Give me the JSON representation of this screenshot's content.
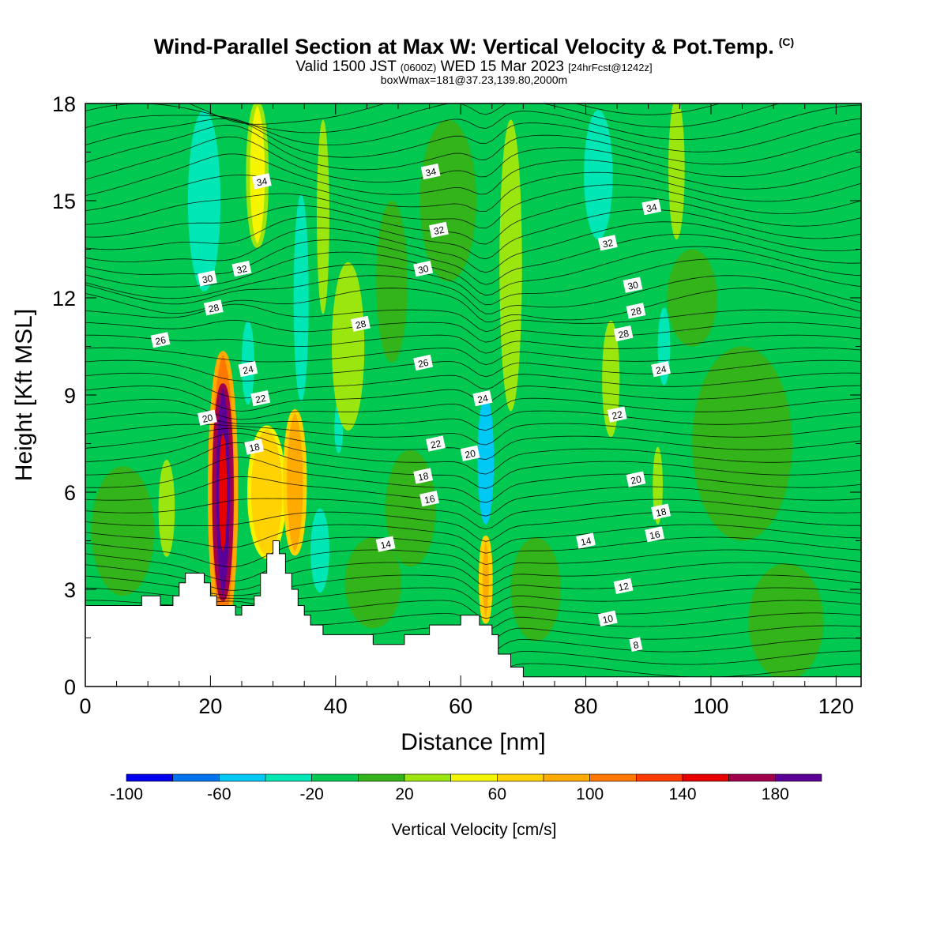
{
  "header": {
    "title": "Wind-Parallel Section at Max W: Vertical Velocity & Pot.Temp.",
    "copyright": "(C)",
    "valid_prefix": "Valid 1500 JST",
    "valid_utc": "(0600Z)",
    "valid_date": "WED 15 Mar 2023",
    "forecast": "[24hrFcst@1242z]",
    "box_info": "boxWmax=181@37.23,139.80,2000m"
  },
  "colorbar": {
    "label": "Vertical Velocity [cm/s]",
    "tick_labels": [
      "-100",
      "-60",
      "-20",
      "20",
      "60",
      "100",
      "140",
      "180"
    ],
    "levels": [
      -100,
      -80,
      -60,
      -40,
      -20,
      0,
      20,
      40,
      60,
      80,
      100,
      120,
      140,
      160,
      180,
      200
    ],
    "colors": [
      "#0000ee",
      "#0073ee",
      "#00c8f5",
      "#00e6b4",
      "#00c850",
      "#33b41a",
      "#9be60f",
      "#f5f500",
      "#ffd200",
      "#ffaa00",
      "#ff7800",
      "#ff3c00",
      "#e60000",
      "#a0004b",
      "#5a0096"
    ]
  },
  "chart_data": {
    "type": "heatmap",
    "xlabel": "Distance [nm]",
    "ylabel": "Height [Kft MSL]",
    "xlim": [
      0,
      124
    ],
    "ylim": [
      0,
      18
    ],
    "x_ticks": [
      0,
      20,
      40,
      60,
      80,
      100,
      120
    ],
    "x_tick_labels": [
      "0",
      "20",
      "40",
      "60",
      "80",
      "100",
      "120"
    ],
    "y_ticks": [
      0,
      3,
      6,
      9,
      12,
      15,
      18
    ],
    "y_tick_labels": [
      "0",
      "3",
      "6",
      "9",
      "12",
      "15",
      "18"
    ],
    "terrain": [
      [
        0,
        2.5
      ],
      [
        9,
        2.5
      ],
      [
        9,
        2.8
      ],
      [
        12,
        2.8
      ],
      [
        12,
        2.5
      ],
      [
        14,
        2.5
      ],
      [
        14,
        2.8
      ],
      [
        15,
        2.8
      ],
      [
        15,
        3.2
      ],
      [
        16,
        3.2
      ],
      [
        16,
        3.5
      ],
      [
        19,
        3.5
      ],
      [
        19,
        3.2
      ],
      [
        20,
        3.2
      ],
      [
        20,
        2.8
      ],
      [
        21,
        2.8
      ],
      [
        21,
        2.5
      ],
      [
        24,
        2.5
      ],
      [
        24,
        2.2
      ],
      [
        25,
        2.2
      ],
      [
        25,
        2.5
      ],
      [
        27,
        2.5
      ],
      [
        27,
        2.8
      ],
      [
        28,
        2.8
      ],
      [
        28,
        3.5
      ],
      [
        29,
        3.5
      ],
      [
        29,
        4.1
      ],
      [
        30,
        4.1
      ],
      [
        30,
        4.5
      ],
      [
        31,
        4.5
      ],
      [
        31,
        4.1
      ],
      [
        32,
        4.1
      ],
      [
        32,
        3.5
      ],
      [
        33,
        3.5
      ],
      [
        33,
        3.0
      ],
      [
        34,
        3.0
      ],
      [
        34,
        2.5
      ],
      [
        35,
        2.5
      ],
      [
        35,
        2.2
      ],
      [
        36,
        2.2
      ],
      [
        36,
        1.9
      ],
      [
        38,
        1.9
      ],
      [
        38,
        1.6
      ],
      [
        46,
        1.6
      ],
      [
        46,
        1.3
      ],
      [
        51,
        1.3
      ],
      [
        51,
        1.6
      ],
      [
        55,
        1.6
      ],
      [
        55,
        1.9
      ],
      [
        60,
        1.9
      ],
      [
        60,
        2.2
      ],
      [
        63,
        2.2
      ],
      [
        63,
        1.9
      ],
      [
        65,
        1.9
      ],
      [
        65,
        1.6
      ],
      [
        66,
        1.6
      ],
      [
        66,
        1.0
      ],
      [
        68,
        1.0
      ],
      [
        68,
        0.6
      ],
      [
        70,
        0.6
      ],
      [
        70,
        0.3
      ],
      [
        124,
        0.3
      ]
    ],
    "w_zones": [
      {
        "x": 22,
        "y": 6.0,
        "rx": 1.4,
        "ry": 3.3,
        "w": 185
      },
      {
        "x": 22,
        "y": 6.0,
        "rx": 2.1,
        "ry": 4.3,
        "w": 110
      },
      {
        "x": 29,
        "y": 6.0,
        "rx": 2.8,
        "ry": 2.0,
        "w": 65
      },
      {
        "x": 33.5,
        "y": 6.3,
        "rx": 1.6,
        "ry": 2.2,
        "w": 85
      },
      {
        "x": 27.5,
        "y": 15.8,
        "rx": 1.5,
        "ry": 2.2,
        "w": 55
      },
      {
        "x": 64,
        "y": 3.3,
        "rx": 0.8,
        "ry": 1.3,
        "w": 85
      },
      {
        "x": 19,
        "y": 15.0,
        "rx": 2.6,
        "ry": 2.8,
        "w": -30
      },
      {
        "x": 34.5,
        "y": 12.0,
        "rx": 1.2,
        "ry": 3.2,
        "w": -30
      },
      {
        "x": 64,
        "y": 7.0,
        "rx": 1.3,
        "ry": 2.0,
        "w": -45
      },
      {
        "x": 37.5,
        "y": 4.2,
        "rx": 1.5,
        "ry": 1.3,
        "w": -25
      },
      {
        "x": 82,
        "y": 15.8,
        "rx": 2.3,
        "ry": 2.0,
        "w": -30
      },
      {
        "x": 92.5,
        "y": 10.5,
        "rx": 1.0,
        "ry": 1.2,
        "w": -25
      },
      {
        "x": 26,
        "y": 10.0,
        "rx": 1.0,
        "ry": 1.3,
        "w": -25
      },
      {
        "x": 40.5,
        "y": 8.0,
        "rx": 0.7,
        "ry": 0.8,
        "w": -25
      },
      {
        "x": 84,
        "y": 9.5,
        "rx": 1.4,
        "ry": 1.8,
        "w": 30
      },
      {
        "x": 94.5,
        "y": 16.0,
        "rx": 1.3,
        "ry": 2.2,
        "w": 30
      },
      {
        "x": 42,
        "y": 10.5,
        "rx": 2.6,
        "ry": 2.6,
        "w": 30
      },
      {
        "x": 68,
        "y": 13.0,
        "rx": 1.8,
        "ry": 4.5,
        "w": 30
      },
      {
        "x": 13,
        "y": 5.5,
        "rx": 1.3,
        "ry": 1.5,
        "w": 30
      },
      {
        "x": 91.5,
        "y": 6.2,
        "rx": 0.8,
        "ry": 1.2,
        "w": 30
      },
      {
        "x": 38,
        "y": 14.5,
        "rx": 1.0,
        "ry": 3.0,
        "w": 30
      },
      {
        "x": 46,
        "y": 3.2,
        "rx": 4.5,
        "ry": 1.4,
        "w": 10
      },
      {
        "x": 52,
        "y": 5.5,
        "rx": 4.0,
        "ry": 1.8,
        "w": 10
      },
      {
        "x": 72,
        "y": 3.0,
        "rx": 4.0,
        "ry": 1.6,
        "w": 10
      },
      {
        "x": 105,
        "y": 7.5,
        "rx": 8.0,
        "ry": 3.0,
        "w": 10
      },
      {
        "x": 112,
        "y": 2.0,
        "rx": 6.0,
        "ry": 1.8,
        "w": 10
      },
      {
        "x": 6,
        "y": 4.8,
        "rx": 5.0,
        "ry": 2.0,
        "w": 10
      },
      {
        "x": 58,
        "y": 15.0,
        "rx": 4.5,
        "ry": 2.5,
        "w": 10
      },
      {
        "x": 97,
        "y": 12.0,
        "rx": 4.0,
        "ry": 1.5,
        "w": 10
      },
      {
        "x": 49,
        "y": 12.5,
        "rx": 2.5,
        "ry": 2.5,
        "w": 10
      }
    ],
    "theta_labels": [
      {
        "text": "34",
        "x": 28.2,
        "y": 15.6
      },
      {
        "text": "34",
        "x": 55.2,
        "y": 15.9
      },
      {
        "text": "34",
        "x": 90.5,
        "y": 14.8
      },
      {
        "text": "32",
        "x": 56.5,
        "y": 14.1
      },
      {
        "text": "32",
        "x": 83.5,
        "y": 13.7
      },
      {
        "text": "32",
        "x": 25,
        "y": 12.9
      },
      {
        "text": "30",
        "x": 19.5,
        "y": 12.6
      },
      {
        "text": "30",
        "x": 54,
        "y": 12.9
      },
      {
        "text": "30",
        "x": 87.5,
        "y": 12.4
      },
      {
        "text": "28",
        "x": 20.5,
        "y": 11.7
      },
      {
        "text": "28",
        "x": 44,
        "y": 11.2
      },
      {
        "text": "28",
        "x": 88,
        "y": 11.6
      },
      {
        "text": "28",
        "x": 86,
        "y": 10.9
      },
      {
        "text": "26",
        "x": 12,
        "y": 10.7
      },
      {
        "text": "26",
        "x": 54,
        "y": 10.0
      },
      {
        "text": "24",
        "x": 26,
        "y": 9.8
      },
      {
        "text": "24",
        "x": 92,
        "y": 9.8
      },
      {
        "text": "24",
        "x": 63.5,
        "y": 8.9
      },
      {
        "text": "22",
        "x": 28,
        "y": 8.9
      },
      {
        "text": "22",
        "x": 56,
        "y": 7.5
      },
      {
        "text": "22",
        "x": 85,
        "y": 8.4
      },
      {
        "text": "20",
        "x": 19.5,
        "y": 8.3
      },
      {
        "text": "20",
        "x": 61.5,
        "y": 7.2
      },
      {
        "text": "20",
        "x": 88,
        "y": 6.4
      },
      {
        "text": "18",
        "x": 27,
        "y": 7.4
      },
      {
        "text": "18",
        "x": 92,
        "y": 5.4
      },
      {
        "text": "18",
        "x": 54,
        "y": 6.5
      },
      {
        "text": "16",
        "x": 55,
        "y": 5.8
      },
      {
        "text": "16",
        "x": 91,
        "y": 4.7
      },
      {
        "text": "14",
        "x": 48,
        "y": 4.4
      },
      {
        "text": "14",
        "x": 80,
        "y": 4.5
      },
      {
        "text": "12",
        "x": 86,
        "y": 3.1
      },
      {
        "text": "10",
        "x": 83.5,
        "y": 2.1
      },
      {
        "text": "8",
        "x": 88,
        "y": 1.3
      }
    ]
  }
}
